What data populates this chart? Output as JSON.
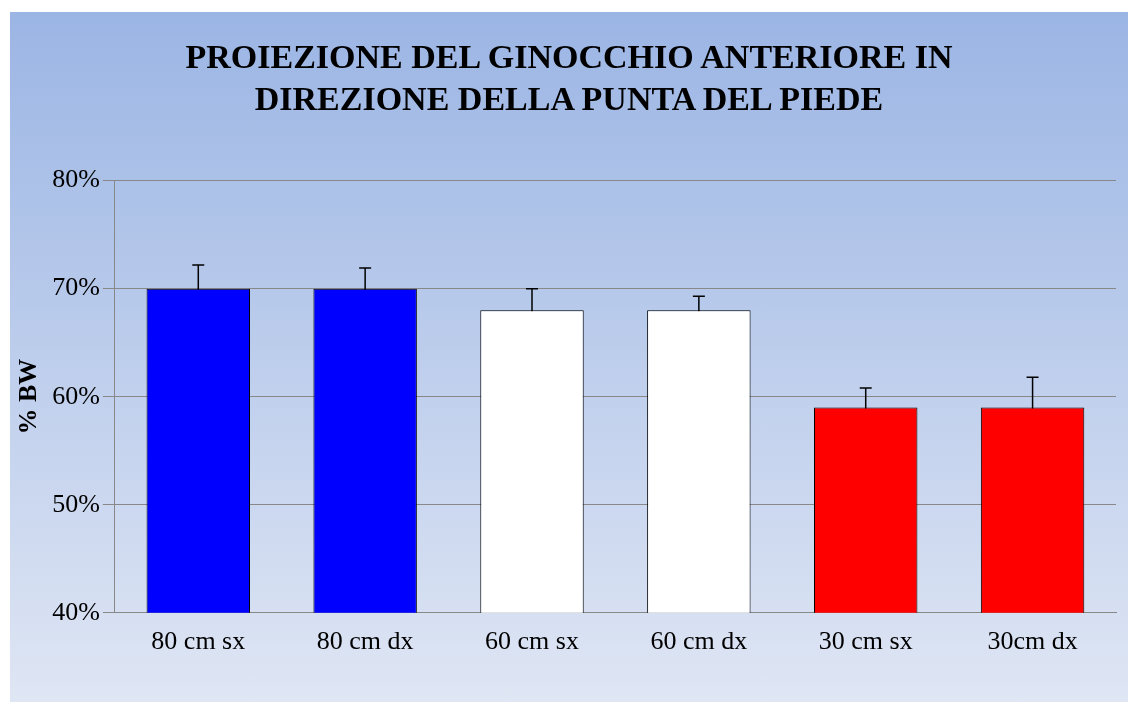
{
  "chart_data": {
    "type": "bar",
    "title": "PROIEZIONE DEL GINOCCHIO ANTERIORE IN DIREZIONE DELLA PUNTA DEL PIEDE",
    "ylabel": "% BW",
    "categories": [
      "80 cm sx",
      "80 cm dx",
      "60 cm sx",
      "60 cm dx",
      "30 cm sx",
      "30cm dx"
    ],
    "values": [
      70,
      70,
      68,
      68,
      59,
      59
    ],
    "colors": [
      "#0000ff",
      "#0000ff",
      "#ffffff",
      "#ffffff",
      "#ff0000",
      "#ff0000"
    ],
    "errors": [
      2.2,
      1.9,
      2,
      1.3,
      1.8,
      2.8
    ],
    "ylim": [
      40,
      80
    ],
    "yticks": [
      {
        "value": 40,
        "label": "40%"
      },
      {
        "value": 50,
        "label": "50%"
      },
      {
        "value": 60,
        "label": "60%"
      },
      {
        "value": 70,
        "label": "70%"
      },
      {
        "value": 80,
        "label": "80%"
      }
    ],
    "grid": "y",
    "legend": false
  }
}
